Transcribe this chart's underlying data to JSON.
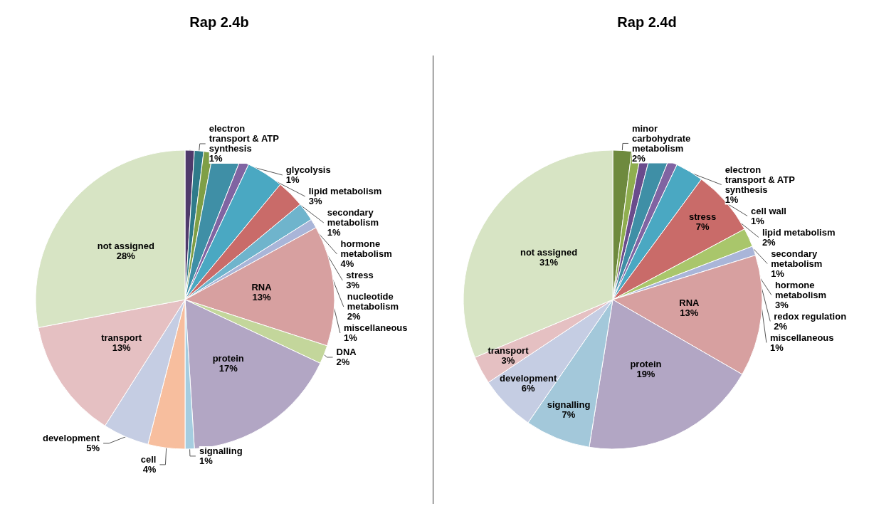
{
  "chart_data": [
    {
      "type": "pie",
      "title": "Rap 2.4b",
      "categories": [
        "glycolysis",
        "electron transport & ATP synthesis",
        null,
        "lipid metabolism",
        "secondary metabolism",
        "hormone metabolism",
        "stress",
        "nucleotide metabolism",
        "miscellaneous",
        "RNA",
        "DNA",
        "protein",
        "signalling",
        "cell",
        "development",
        "transport",
        "not assigned"
      ],
      "values": [
        1,
        1,
        1,
        3,
        1,
        4,
        3,
        2,
        1,
        13,
        2,
        17,
        1,
        4,
        5,
        13,
        28
      ],
      "value_labels": [
        "1%",
        "1%",
        null,
        "3%",
        "1%",
        "4%",
        "3%",
        "2%",
        "1%",
        "13%",
        "2%",
        "17%",
        "1%",
        "4%",
        "5%",
        "13%",
        "28%"
      ],
      "colors": [
        "#4f3a6b",
        "#2e7b8a",
        "#7f9f46",
        "#3f8fa6",
        "#8064a2",
        "#4aa8c2",
        "#c96b69",
        "#6fb4cc",
        "#a9b5d8",
        "#d7a0a0",
        "#c3d69b",
        "#b2a6c4",
        "#a5cde0",
        "#f7be9e",
        "#c5cde3",
        "#e5c0c2",
        "#d7e4c4"
      ]
    },
    {
      "type": "pie",
      "title": "Rap 2.4d",
      "categories": [
        "minor carbohydrate metabolism",
        "electron transport & ATP synthesis",
        "cell wall",
        "lipid metabolism",
        "secondary metabolism",
        "hormone metabolism",
        "stress",
        "redox regulation",
        "miscellaneous",
        "RNA",
        "protein",
        "signalling",
        "development",
        "transport",
        "not assigned"
      ],
      "values": [
        2,
        1,
        1,
        2,
        1,
        3,
        7,
        2,
        1,
        13,
        19,
        7,
        6,
        3,
        31
      ],
      "value_labels": [
        "2%",
        "1%",
        "1%",
        "2%",
        "1%",
        "3%",
        "7%",
        "2%",
        "1%",
        "13%",
        "19%",
        "7%",
        "6%",
        "3%",
        "31%"
      ],
      "colors": [
        "#6e8a3e",
        "#8fae4f",
        "#6a4c8c",
        "#3f8fa6",
        "#8064a2",
        "#4aa8c2",
        "#c96b69",
        "#a9c66b",
        "#a9b5d8",
        "#d7a0a0",
        "#b2a6c4",
        "#a3c8da",
        "#c5cde3",
        "#e5c0c2",
        "#d7e4c4"
      ]
    }
  ]
}
